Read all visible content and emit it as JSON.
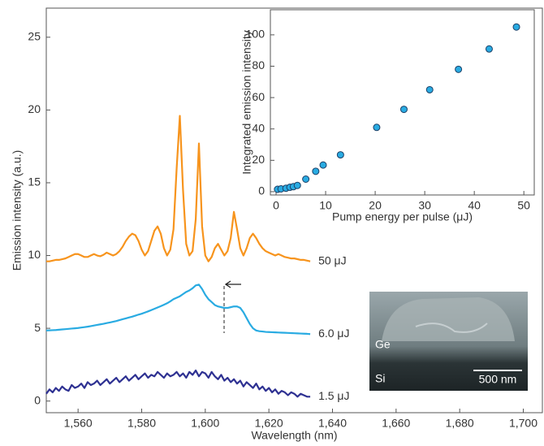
{
  "chart_data": [
    {
      "type": "line",
      "x_label": "Wavelength (nm)",
      "y_label": "Emission intensity (a.u.)",
      "xlim": [
        1550,
        1706
      ],
      "ylim": [
        -0.8,
        27
      ],
      "xticks": [
        {
          "value": 1560,
          "label": "1,560"
        },
        {
          "value": 1580,
          "label": "1,580"
        },
        {
          "value": 1600,
          "label": "1,600"
        },
        {
          "value": 1620,
          "label": "1,620"
        },
        {
          "value": 1640,
          "label": "1,640"
        },
        {
          "value": 1660,
          "label": "1,660"
        },
        {
          "value": 1680,
          "label": "1,680"
        },
        {
          "value": 1700,
          "label": "1,700"
        }
      ],
      "yticks": [
        0,
        5,
        10,
        15,
        20,
        25
      ],
      "grid": false,
      "x": [
        1550,
        1551,
        1552,
        1553,
        1554,
        1555,
        1556,
        1557,
        1558,
        1559,
        1560,
        1561,
        1562,
        1563,
        1564,
        1565,
        1566,
        1567,
        1568,
        1569,
        1570,
        1571,
        1572,
        1573,
        1574,
        1575,
        1576,
        1577,
        1578,
        1579,
        1580,
        1581,
        1582,
        1583,
        1584,
        1585,
        1586,
        1587,
        1588,
        1589,
        1590,
        1591,
        1592,
        1593,
        1594,
        1595,
        1596,
        1597,
        1598,
        1599,
        1600,
        1601,
        1602,
        1603,
        1604,
        1605,
        1606,
        1607,
        1608,
        1609,
        1610,
        1611,
        1612,
        1613,
        1614,
        1615,
        1616,
        1617,
        1618,
        1619,
        1620,
        1621,
        1622,
        1623,
        1624,
        1625,
        1626,
        1627,
        1628,
        1629,
        1630,
        1631,
        1632,
        1633
      ],
      "series": [
        {
          "name": "50 μJ",
          "color": "#f7941d",
          "values": [
            9.6,
            9.6,
            9.65,
            9.7,
            9.7,
            9.75,
            9.8,
            9.9,
            10.0,
            10.1,
            10.1,
            10.0,
            9.9,
            9.9,
            10.0,
            10.1,
            10.0,
            9.95,
            10.05,
            10.2,
            10.1,
            10.0,
            10.1,
            10.3,
            10.6,
            11.0,
            11.3,
            11.5,
            11.4,
            11.0,
            10.4,
            10.0,
            10.3,
            11.0,
            11.7,
            12.0,
            11.5,
            10.5,
            10.0,
            10.4,
            11.8,
            16.0,
            19.6,
            14.5,
            10.8,
            10.0,
            10.3,
            12.5,
            17.7,
            12.0,
            10.0,
            9.6,
            9.9,
            10.5,
            10.8,
            10.4,
            10.0,
            10.3,
            11.2,
            13.0,
            11.8,
            10.5,
            10.0,
            10.5,
            11.2,
            11.5,
            11.2,
            10.8,
            10.5,
            10.3,
            10.2,
            10.1,
            10.0,
            10.1,
            10.0,
            9.9,
            9.85,
            9.8,
            9.8,
            9.75,
            9.7,
            9.7,
            9.65,
            9.6
          ]
        },
        {
          "name": "6.0 μJ",
          "color": "#29abe2",
          "values": [
            4.85,
            4.86,
            4.87,
            4.88,
            4.9,
            4.92,
            4.94,
            4.96,
            4.98,
            5.0,
            5.02,
            5.05,
            5.08,
            5.11,
            5.15,
            5.19,
            5.23,
            5.27,
            5.31,
            5.36,
            5.4,
            5.45,
            5.5,
            5.56,
            5.62,
            5.68,
            5.74,
            5.8,
            5.87,
            5.94,
            6.0,
            6.08,
            6.16,
            6.25,
            6.34,
            6.43,
            6.52,
            6.62,
            6.72,
            6.85,
            7.0,
            7.1,
            7.2,
            7.35,
            7.5,
            7.6,
            7.75,
            7.95,
            8.0,
            7.7,
            7.3,
            7.0,
            6.8,
            6.6,
            6.5,
            6.45,
            6.4,
            6.4,
            6.45,
            6.5,
            6.5,
            6.4,
            6.1,
            5.7,
            5.3,
            5.0,
            4.85,
            4.8,
            4.78,
            4.75,
            4.74,
            4.73,
            4.72,
            4.71,
            4.7,
            4.69,
            4.68,
            4.67,
            4.66,
            4.65,
            4.64,
            4.63,
            4.62,
            4.6
          ]
        },
        {
          "name": "1.5 μJ",
          "color": "#2e3192",
          "values": [
            0.5,
            0.8,
            0.6,
            0.9,
            0.7,
            1.0,
            0.8,
            0.7,
            1.1,
            0.9,
            1.0,
            1.2,
            0.9,
            1.3,
            1.1,
            1.2,
            1.4,
            1.1,
            1.3,
            1.5,
            1.2,
            1.4,
            1.6,
            1.3,
            1.5,
            1.7,
            1.4,
            1.6,
            1.8,
            1.5,
            1.7,
            1.9,
            1.6,
            1.8,
            1.7,
            2.0,
            1.8,
            1.6,
            1.9,
            1.7,
            1.8,
            2.0,
            1.7,
            1.9,
            1.6,
            2.0,
            1.8,
            2.1,
            1.7,
            2.0,
            1.9,
            1.6,
            2.0,
            1.7,
            1.5,
            1.8,
            1.4,
            1.6,
            1.3,
            1.5,
            1.2,
            1.4,
            1.0,
            1.3,
            1.1,
            0.9,
            1.2,
            0.8,
            1.0,
            0.7,
            0.9,
            0.6,
            0.8,
            0.5,
            0.7,
            0.6,
            0.4,
            0.6,
            0.5,
            0.3,
            0.5,
            0.4,
            0.3,
            0.3
          ]
        }
      ],
      "annotations": [
        "Ge",
        "Si",
        "500 nm"
      ]
    },
    {
      "type": "scatter",
      "x_label": "Pump energy per pulse (μJ)",
      "y_label": "Integrated emission intensity",
      "xlim": [
        -1.15,
        52.1
      ],
      "ylim": [
        -2.1,
        116
      ],
      "xticks": [
        0,
        10,
        20,
        30,
        40,
        50
      ],
      "yticks": [
        0,
        20,
        40,
        60,
        80,
        100
      ],
      "color": "#29abe2",
      "x": [
        0.3,
        1,
        2,
        2.8,
        3.5,
        4.3,
        6,
        8,
        9.5,
        13,
        20.3,
        25.8,
        31,
        36.8,
        43,
        48.5
      ],
      "values": [
        1.5,
        1.8,
        2.2,
        2.8,
        3.2,
        4,
        8,
        13,
        17,
        23.5,
        41,
        52.5,
        65,
        78,
        91,
        105
      ]
    }
  ]
}
